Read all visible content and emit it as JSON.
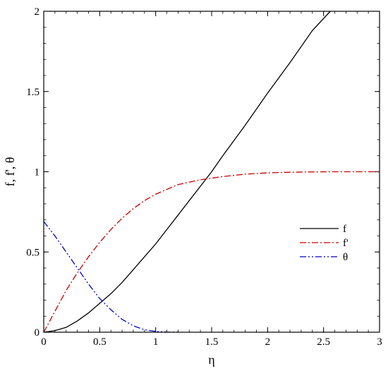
{
  "chart_data": {
    "type": "line",
    "title": "",
    "xlabel": "η",
    "ylabel": "f, f', θ",
    "xlim": [
      0,
      3
    ],
    "ylim": [
      0,
      2
    ],
    "xticks": [
      0,
      0.5,
      1,
      1.5,
      2,
      2.5,
      3
    ],
    "yticks": [
      0,
      0.5,
      1,
      1.5,
      2
    ],
    "xtick_labels": [
      "0",
      "0.5",
      "1",
      "1.5",
      "2",
      "2.5",
      "3"
    ],
    "ytick_labels": [
      "0",
      "0.5",
      "1",
      "1.5",
      "2"
    ],
    "grid": false,
    "legend_position": "right",
    "series": [
      {
        "name": "f",
        "color": "#000000",
        "dash": "solid",
        "x": [
          0,
          0.1,
          0.2,
          0.3,
          0.4,
          0.5,
          0.6,
          0.7,
          0.8,
          0.9,
          1.0,
          1.1,
          1.2,
          1.3,
          1.4,
          1.5,
          1.6,
          1.8,
          2.0,
          2.2,
          2.4,
          2.56
        ],
        "y": [
          0,
          0.01,
          0.03,
          0.07,
          0.12,
          0.18,
          0.24,
          0.31,
          0.39,
          0.47,
          0.55,
          0.64,
          0.73,
          0.82,
          0.91,
          1.0,
          1.1,
          1.29,
          1.49,
          1.68,
          1.88,
          2.0
        ]
      },
      {
        "name": "f'",
        "color": "#cc0000",
        "dash": "dashdot",
        "x": [
          0,
          0.1,
          0.2,
          0.3,
          0.4,
          0.5,
          0.6,
          0.7,
          0.8,
          0.9,
          1.0,
          1.2,
          1.4,
          1.6,
          1.8,
          2.0,
          2.2,
          2.4,
          2.6,
          2.8,
          3.0
        ],
        "y": [
          0,
          0.13,
          0.26,
          0.37,
          0.47,
          0.56,
          0.64,
          0.71,
          0.77,
          0.82,
          0.86,
          0.92,
          0.95,
          0.97,
          0.985,
          0.993,
          0.997,
          0.999,
          1.0,
          1.0,
          1.0
        ]
      },
      {
        "name": "θ",
        "color": "#0000cc",
        "dash": "dashdotdot",
        "x": [
          0,
          0.1,
          0.2,
          0.3,
          0.4,
          0.5,
          0.6,
          0.7,
          0.8,
          0.9,
          1.0,
          1.1,
          1.2
        ],
        "y": [
          0.69,
          0.6,
          0.5,
          0.4,
          0.3,
          0.21,
          0.14,
          0.08,
          0.04,
          0.015,
          0.005,
          0.001,
          0
        ]
      }
    ]
  }
}
